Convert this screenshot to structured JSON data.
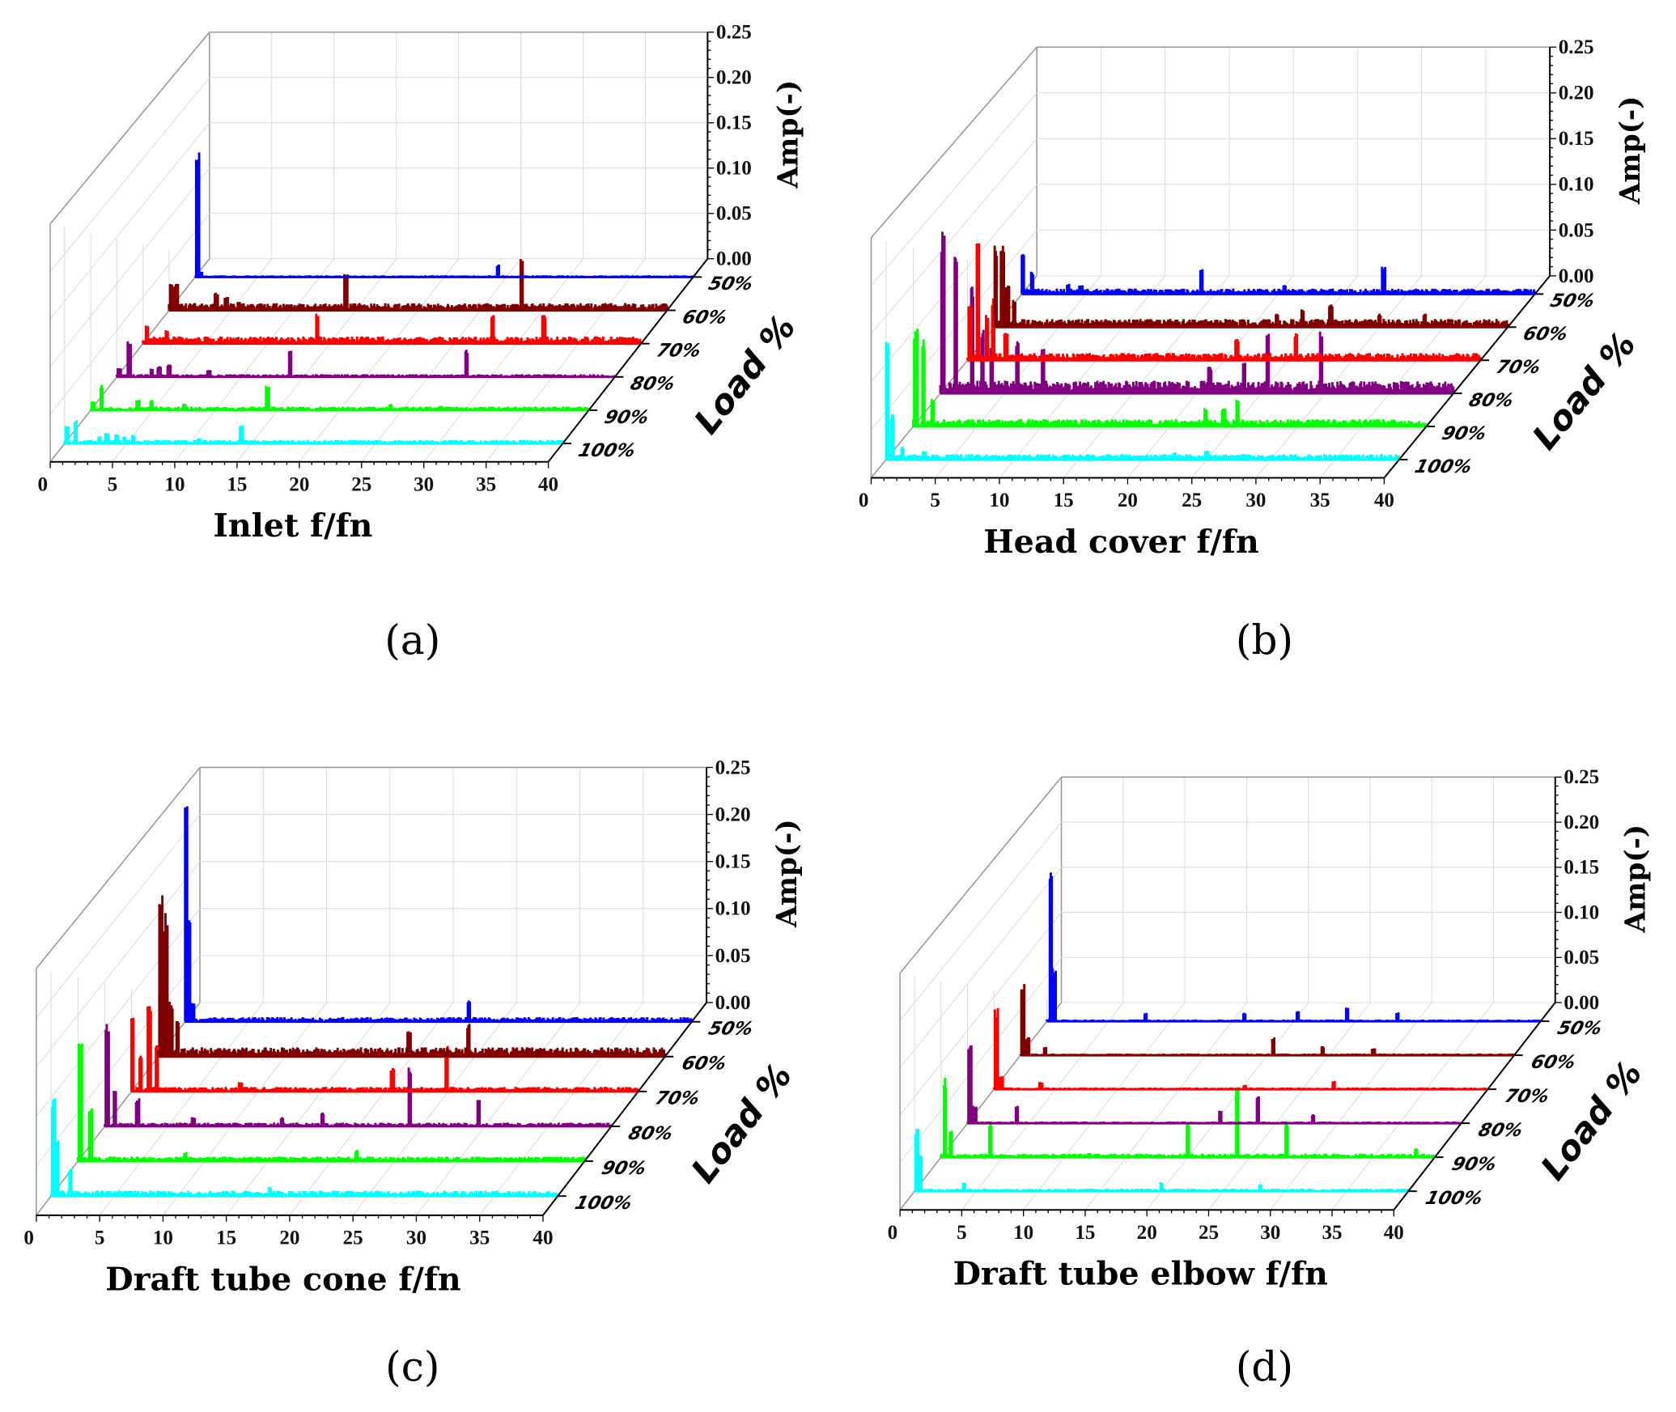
{
  "chart_data": [
    {
      "type": "line",
      "panel_label": "(a)",
      "xlabel": "Inlet f/fn",
      "ylabel": "Load %",
      "zlabel": "Amp(-)",
      "xlim": [
        0,
        40
      ],
      "zlim": [
        0,
        0.25
      ],
      "xticks": [
        "0",
        "5",
        "10",
        "15",
        "20",
        "25",
        "30",
        "35",
        "40"
      ],
      "zticks": [
        "0.00",
        "0.05",
        "0.10",
        "0.15",
        "0.20",
        "0.25"
      ],
      "series": [
        {
          "name": "100%",
          "color": "#00ffff",
          "noise": 0.004,
          "peaks": [
            [
              0.2,
              0.02
            ],
            [
              0.9,
              0.027
            ],
            [
              2.8,
              0.008
            ],
            [
              3.4,
              0.012
            ],
            [
              4.2,
              0.01
            ],
            [
              4.8,
              0.008
            ],
            [
              5.5,
              0.01
            ],
            [
              7.4,
              0.004
            ],
            [
              8.0,
              0.004
            ],
            [
              10.8,
              0.006
            ],
            [
              14.2,
              0.02
            ]
          ]
        },
        {
          "name": "90%",
          "color": "#00ff00",
          "noise": 0.004,
          "peaks": [
            [
              0.2,
              0.01
            ],
            [
              0.9,
              0.028
            ],
            [
              3.8,
              0.012
            ],
            [
              4.9,
              0.012
            ],
            [
              7.5,
              0.008
            ],
            [
              14.2,
              0.029
            ],
            [
              24.1,
              0.007
            ],
            [
              28.1,
              0.005
            ]
          ]
        },
        {
          "name": "80%",
          "color": "#800080",
          "noise": 0.003,
          "peaks": [
            [
              0.2,
              0.01
            ],
            [
              1.0,
              0.041
            ],
            [
              2.8,
              0.01
            ],
            [
              3.4,
              0.012
            ],
            [
              4.2,
              0.014
            ],
            [
              7.4,
              0.008
            ],
            [
              13.9,
              0.031
            ],
            [
              28.1,
              0.031
            ]
          ]
        },
        {
          "name": "70%",
          "color": "#ff0000",
          "noise": 0.008,
          "peaks": [
            [
              0.3,
              0.02
            ],
            [
              1.9,
              0.015
            ],
            [
              4.5,
              0.006
            ],
            [
              14.0,
              0.033
            ],
            [
              28.1,
              0.033
            ],
            [
              32.2,
              0.033
            ]
          ]
        },
        {
          "name": "60%",
          "color": "#800000",
          "noise": 0.008,
          "peaks": [
            [
              0.2,
              0.03
            ],
            [
              0.6,
              0.03
            ],
            [
              3.8,
              0.02
            ],
            [
              4.6,
              0.015
            ],
            [
              5.6,
              0.01
            ],
            [
              14.2,
              0.045
            ],
            [
              28.3,
              0.061
            ]
          ]
        },
        {
          "name": "50%",
          "color": "#0000ff",
          "noise": 0.002,
          "peaks": [
            [
              0.2,
              0.145
            ],
            [
              0.5,
              0.006
            ],
            [
              24.3,
              0.014
            ]
          ]
        }
      ]
    },
    {
      "type": "line",
      "panel_label": "(b)",
      "xlabel": "Head cover f/fn",
      "ylabel": "Load %",
      "zlabel": "Amp(-)",
      "xlim": [
        0,
        40
      ],
      "zlim": [
        0,
        0.25
      ],
      "xticks": [
        "0",
        "5",
        "10",
        "15",
        "20",
        "25",
        "30",
        "35",
        "40"
      ],
      "zticks": [
        "0.00",
        "0.05",
        "0.10",
        "0.15",
        "0.20",
        "0.25"
      ],
      "series": [
        {
          "name": "100%",
          "color": "#00ffff",
          "noise": 0.006,
          "peaks": [
            [
              0.1,
              0.137
            ],
            [
              0.5,
              0.05
            ],
            [
              1.3,
              0.015
            ],
            [
              3.0,
              0.01
            ],
            [
              22.5,
              0.008
            ],
            [
              25.0,
              0.01
            ]
          ]
        },
        {
          "name": "90%",
          "color": "#00ff00",
          "noise": 0.008,
          "peaks": [
            [
              0.2,
              0.107
            ],
            [
              0.8,
              0.1
            ],
            [
              1.5,
              0.03
            ],
            [
              22.8,
              0.02
            ],
            [
              24.2,
              0.02
            ],
            [
              25.3,
              0.03
            ]
          ]
        },
        {
          "name": "80%",
          "color": "#800080",
          "noise": 0.014,
          "peaks": [
            [
              0.2,
              0.18
            ],
            [
              1.2,
              0.15
            ],
            [
              2.5,
              0.12
            ],
            [
              3.3,
              0.07
            ],
            [
              4.0,
              0.05
            ],
            [
              6.0,
              0.06
            ],
            [
              8.0,
              0.05
            ],
            [
              21.0,
              0.03
            ],
            [
              23.7,
              0.035
            ],
            [
              25.5,
              0.07
            ],
            [
              29.7,
              0.07
            ]
          ]
        },
        {
          "name": "70%",
          "color": "#ff0000",
          "noise": 0.008,
          "peaks": [
            [
              0.2,
              0.06
            ],
            [
              0.8,
              0.13
            ],
            [
              1.5,
              0.05
            ],
            [
              2.0,
              0.07
            ],
            [
              3.0,
              0.03
            ],
            [
              21.0,
              0.024
            ],
            [
              25.6,
              0.03
            ]
          ]
        },
        {
          "name": "60%",
          "color": "#800000",
          "noise": 0.009,
          "peaks": [
            [
              0.1,
              0.09
            ],
            [
              0.6,
              0.09
            ],
            [
              1.0,
              0.05
            ],
            [
              1.5,
              0.03
            ],
            [
              22.0,
              0.015
            ],
            [
              24.0,
              0.02
            ],
            [
              26.2,
              0.025
            ],
            [
              30.0,
              0.015
            ],
            [
              33.5,
              0.015
            ]
          ]
        },
        {
          "name": "50%",
          "color": "#0000ff",
          "noise": 0.006,
          "peaks": [
            [
              0.1,
              0.05
            ],
            [
              0.8,
              0.025
            ],
            [
              3.6,
              0.012
            ],
            [
              4.6,
              0.01
            ],
            [
              14.0,
              0.028
            ],
            [
              20.5,
              0.01
            ],
            [
              28.2,
              0.03
            ]
          ]
        }
      ]
    },
    {
      "type": "line",
      "panel_label": "(c)",
      "xlabel": "Draft tube cone f/fn",
      "ylabel": "Load %",
      "zlabel": "Amp(-)",
      "xlim": [
        0,
        40
      ],
      "zlim": [
        0,
        0.25
      ],
      "xticks": [
        "0",
        "5",
        "10",
        "15",
        "20",
        "25",
        "30",
        "35",
        "40"
      ],
      "zticks": [
        "0.00",
        "0.05",
        "0.10",
        "0.15",
        "0.20",
        "0.25"
      ],
      "series": [
        {
          "name": "100%",
          "color": "#00ffff",
          "noise": 0.006,
          "peaks": [
            [
              0.2,
              0.105
            ],
            [
              0.5,
              0.06
            ],
            [
              1.5,
              0.03
            ],
            [
              17.3,
              0.01
            ]
          ]
        },
        {
          "name": "90%",
          "color": "#00ff00",
          "noise": 0.005,
          "peaks": [
            [
              0.2,
              0.133
            ],
            [
              1.0,
              0.06
            ],
            [
              8.5,
              0.01
            ],
            [
              22.0,
              0.012
            ]
          ]
        },
        {
          "name": "80%",
          "color": "#800080",
          "noise": 0.004,
          "peaks": [
            [
              0.2,
              0.114
            ],
            [
              0.8,
              0.04
            ],
            [
              2.6,
              0.03
            ],
            [
              7.0,
              0.01
            ],
            [
              14.0,
              0.01
            ],
            [
              17.2,
              0.015
            ],
            [
              24.1,
              0.065
            ],
            [
              29.5,
              0.03
            ]
          ]
        },
        {
          "name": "70%",
          "color": "#ff0000",
          "noise": 0.005,
          "peaks": [
            [
              0.1,
              0.085
            ],
            [
              0.7,
              0.04
            ],
            [
              1.4,
              0.1
            ],
            [
              2.0,
              0.05
            ],
            [
              8.6,
              0.01
            ],
            [
              20.6,
              0.025
            ],
            [
              24.9,
              0.05
            ]
          ]
        },
        {
          "name": "60%",
          "color": "#800000",
          "noise": 0.01,
          "peaks": [
            [
              0.2,
              0.18
            ],
            [
              0.6,
              0.155
            ],
            [
              1.0,
              0.06
            ],
            [
              1.5,
              0.04
            ],
            [
              19.8,
              0.028
            ],
            [
              24.5,
              0.035
            ]
          ]
        },
        {
          "name": "50%",
          "color": "#0000ff",
          "noise": 0.005,
          "peaks": [
            [
              0.1,
              0.242
            ],
            [
              0.3,
              0.11
            ],
            [
              0.6,
              0.02
            ],
            [
              22.4,
              0.023
            ]
          ]
        }
      ]
    },
    {
      "type": "line",
      "panel_label": "(d)",
      "xlabel": "Draft tube elbow f/fn",
      "ylabel": "Load %",
      "zlabel": "Amp(-)",
      "xlim": [
        0,
        40
      ],
      "zlim": [
        0,
        0.25
      ],
      "xticks": [
        "0",
        "5",
        "10",
        "15",
        "20",
        "25",
        "30",
        "35",
        "40"
      ],
      "zticks": [
        "0.00",
        "0.05",
        "0.10",
        "0.15",
        "0.20",
        "0.25"
      ],
      "series": [
        {
          "name": "100%",
          "color": "#00ffff",
          "noise": 0.003,
          "peaks": [
            [
              0.2,
              0.07
            ],
            [
              0.5,
              0.04
            ],
            [
              4.0,
              0.01
            ],
            [
              20.0,
              0.01
            ],
            [
              28.0,
              0.008
            ]
          ]
        },
        {
          "name": "90%",
          "color": "#00ff00",
          "noise": 0.004,
          "peaks": [
            [
              0.3,
              0.09
            ],
            [
              0.8,
              0.03
            ],
            [
              4.0,
              0.04
            ],
            [
              12.0,
              0.005
            ],
            [
              20.0,
              0.04
            ],
            [
              24.0,
              0.08
            ],
            [
              28.0,
              0.04
            ],
            [
              38.5,
              0.01
            ]
          ]
        },
        {
          "name": "80%",
          "color": "#800080",
          "noise": 0.002,
          "peaks": [
            [
              0.2,
              0.09
            ],
            [
              0.6,
              0.02
            ],
            [
              4.0,
              0.02
            ],
            [
              20.5,
              0.015
            ],
            [
              23.5,
              0.03
            ],
            [
              28.0,
              0.01
            ]
          ]
        },
        {
          "name": "70%",
          "color": "#ff0000",
          "noise": 0.002,
          "peaks": [
            [
              0.2,
              0.09
            ],
            [
              0.6,
              0.015
            ],
            [
              3.8,
              0.008
            ],
            [
              20.3,
              0.005
            ],
            [
              27.5,
              0.01
            ]
          ]
        },
        {
          "name": "60%",
          "color": "#800000",
          "noise": 0.002,
          "peaks": [
            [
              0.2,
              0.08
            ],
            [
              0.6,
              0.02
            ],
            [
              2.0,
              0.01
            ],
            [
              20.5,
              0.02
            ],
            [
              24.5,
              0.01
            ],
            [
              28.6,
              0.008
            ]
          ]
        },
        {
          "name": "50%",
          "color": "#0000ff",
          "noise": 0.002,
          "peaks": [
            [
              0.3,
              0.176
            ],
            [
              0.6,
              0.06
            ],
            [
              8.0,
              0.01
            ],
            [
              16.0,
              0.01
            ],
            [
              20.3,
              0.012
            ],
            [
              24.3,
              0.015
            ],
            [
              28.4,
              0.01
            ]
          ]
        }
      ]
    }
  ]
}
